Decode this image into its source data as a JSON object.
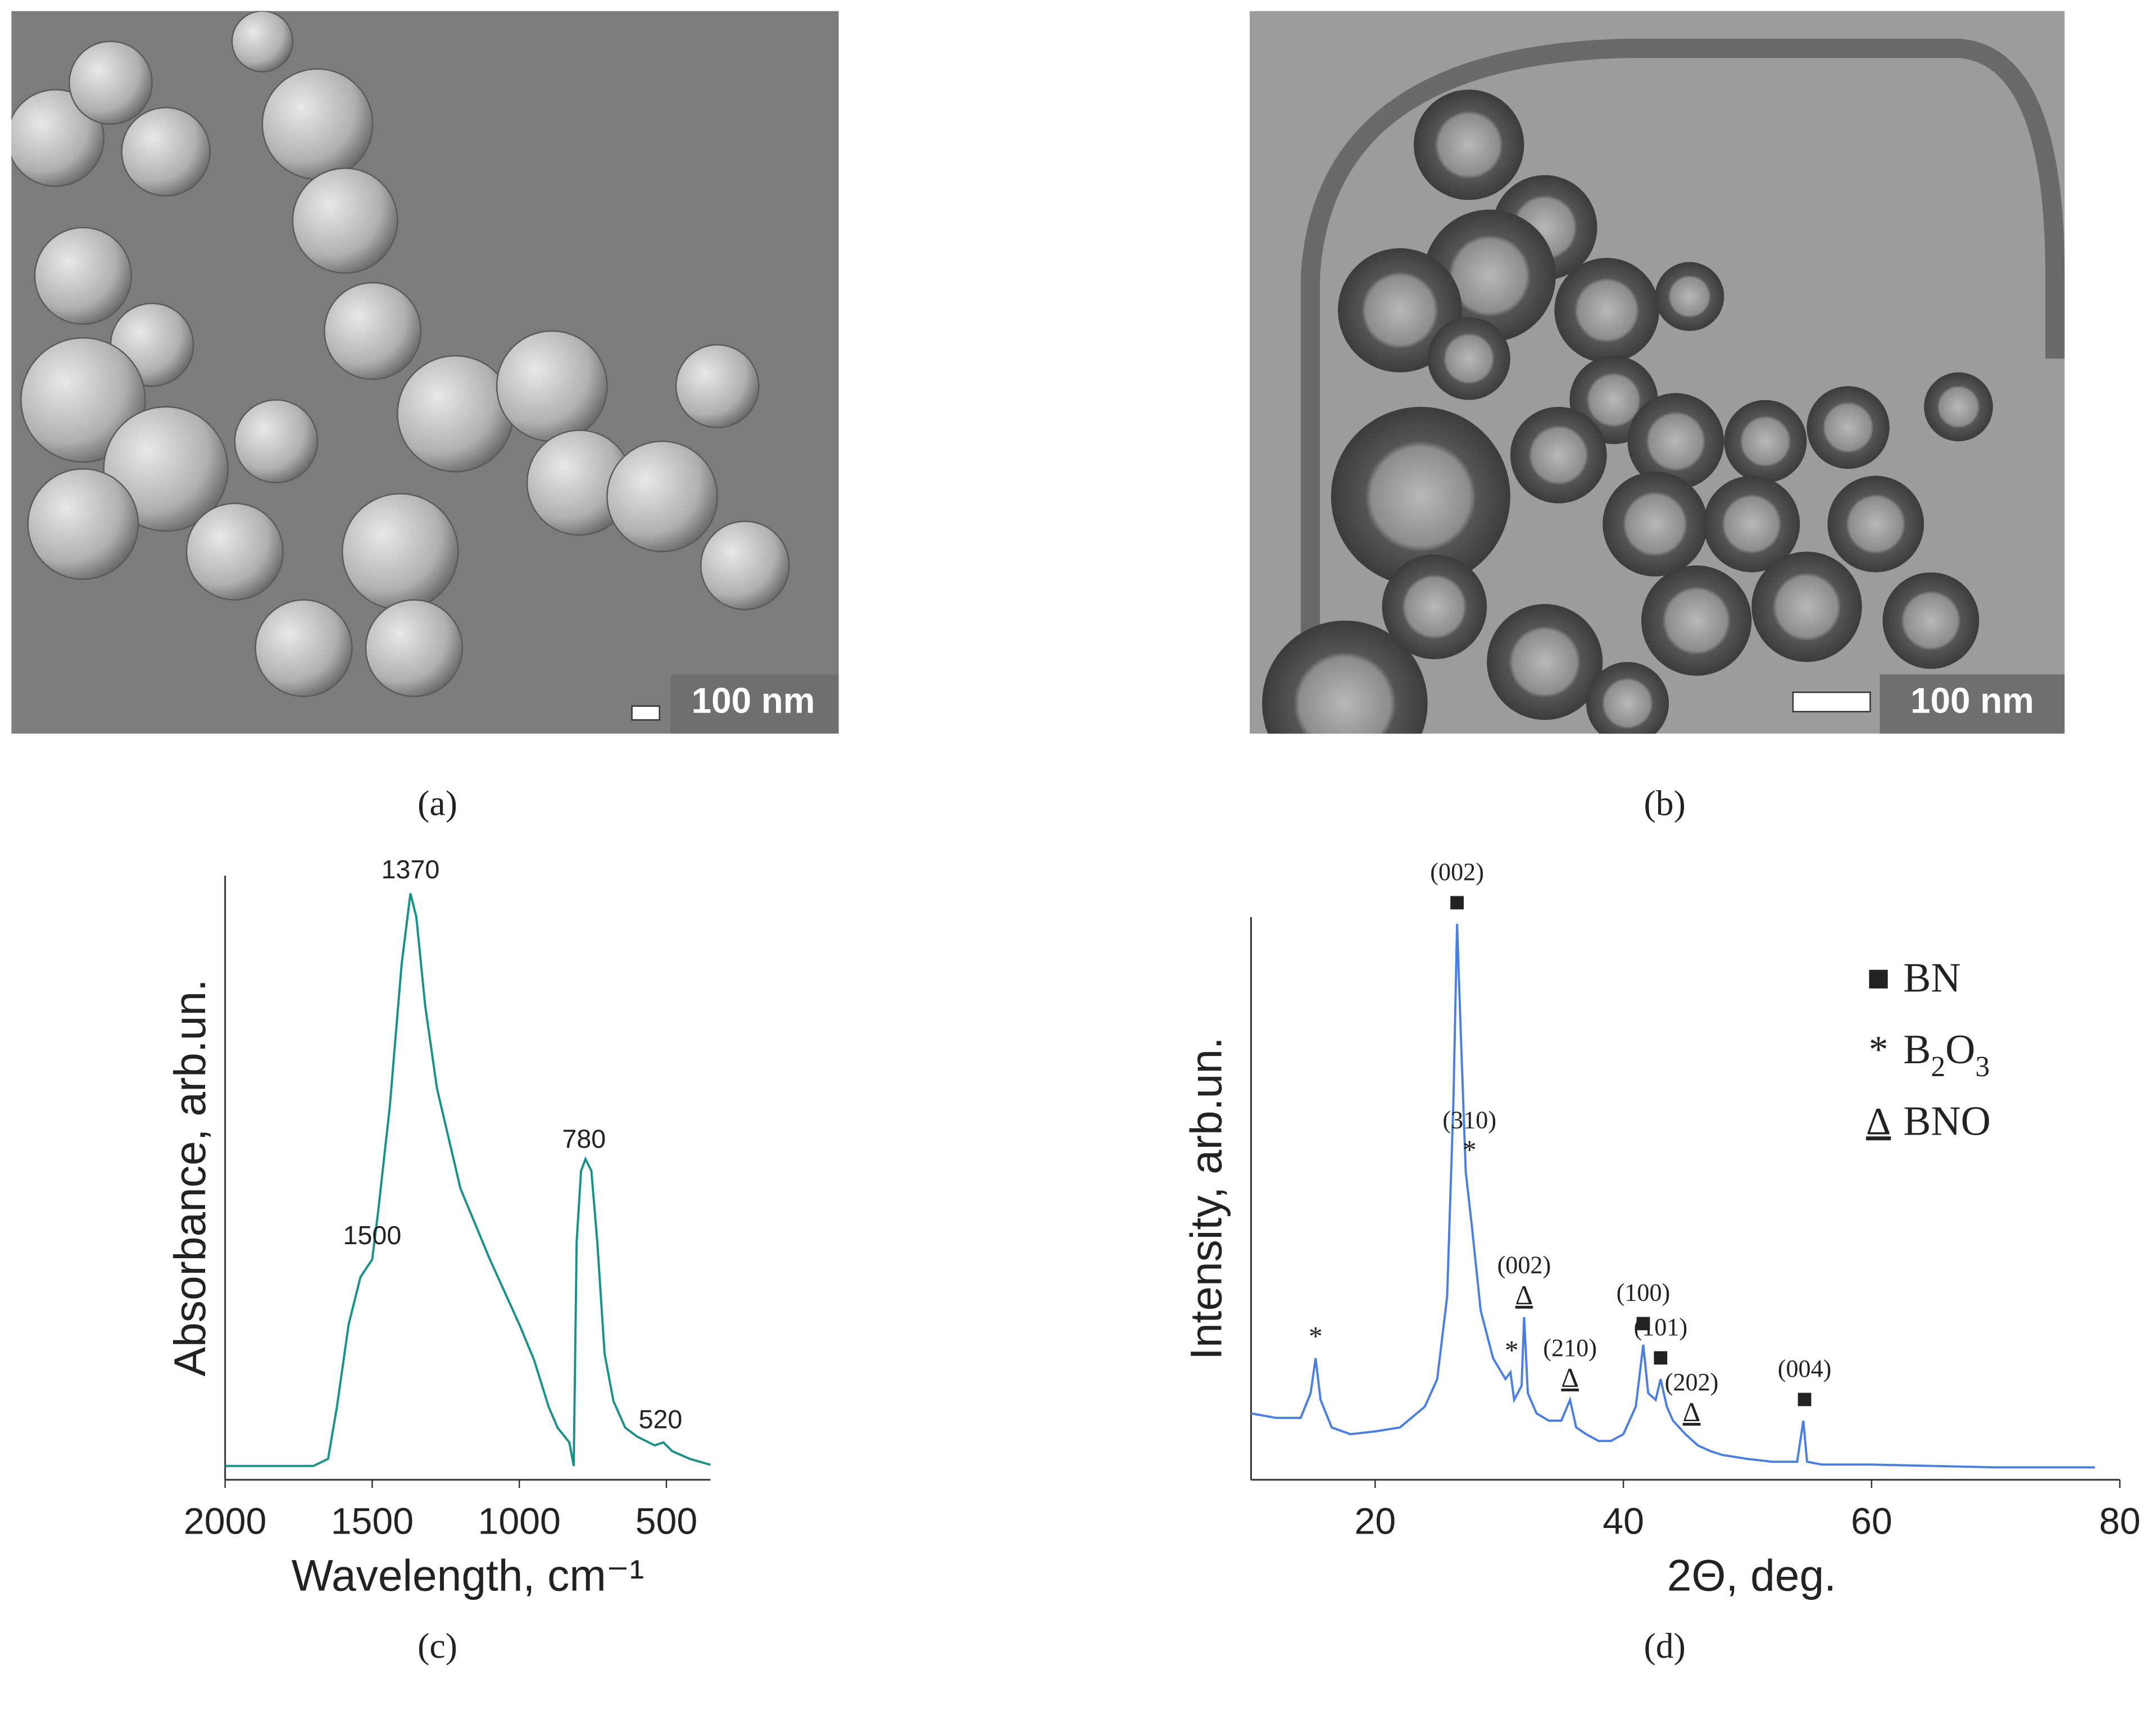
{
  "figure": {
    "panels": [
      {
        "label": "(a)",
        "scale_bar": "100 nm"
      },
      {
        "label": "(b)",
        "scale_bar": "100 nm"
      }
    ]
  },
  "chart_data": [
    {
      "type": "line",
      "label": "(c)",
      "x_label": "Wavelength, cm⁻¹",
      "y_label": "Absorbance, arb.un.",
      "xlim": [
        2000,
        350
      ],
      "xticks": [
        2000,
        1500,
        1000,
        500
      ],
      "ylim": [
        0,
        1
      ],
      "x": [
        2000,
        1700,
        1650,
        1620,
        1580,
        1540,
        1500,
        1480,
        1440,
        1400,
        1370,
        1350,
        1320,
        1280,
        1200,
        1100,
        1000,
        950,
        900,
        870,
        830,
        815,
        805,
        790,
        775,
        755,
        735,
        710,
        680,
        640,
        600,
        540,
        510,
        480,
        420,
        350
      ],
      "series": [
        {
          "color": "#1a9089",
          "values": [
            0,
            0,
            0.012,
            0.1,
            0.24,
            0.32,
            0.35,
            0.43,
            0.61,
            0.85,
            0.97,
            0.93,
            0.78,
            0.64,
            0.47,
            0.35,
            0.24,
            0.18,
            0.1,
            0.065,
            0.04,
            0,
            0.38,
            0.5,
            0.52,
            0.5,
            0.38,
            0.19,
            0.11,
            0.065,
            0.05,
            0.035,
            0.04,
            0.025,
            0.012,
            0.002
          ]
        }
      ],
      "peak_labels": [
        1500,
        1370,
        780,
        520
      ]
    },
    {
      "type": "line",
      "label": "(d)",
      "x_label": "2Θ, deg.",
      "y_label": "Intensity, arb.un.",
      "xlim": [
        10,
        80
      ],
      "xticks": [
        20,
        40,
        60,
        80
      ],
      "ylim": [
        0,
        1
      ],
      "x": [
        10,
        12,
        14,
        14.8,
        15.2,
        15.6,
        16.5,
        18,
        20,
        22,
        24,
        25,
        25.8,
        26.3,
        26.6,
        26.9,
        27.3,
        27.8,
        28.5,
        29.5,
        30.5,
        30.9,
        31.2,
        31.8,
        32.0,
        32.3,
        33,
        34,
        35,
        35.7,
        36.2,
        37,
        38,
        39,
        40,
        41,
        41.6,
        42,
        42.6,
        43,
        43.5,
        44,
        45,
        46,
        47,
        48,
        50,
        52,
        54,
        54.5,
        54.8,
        56,
        60,
        64,
        70,
        78
      ],
      "series": [
        {
          "color": "#4a7fe0",
          "values": [
            0.118,
            0.11,
            0.11,
            0.154,
            0.216,
            0.142,
            0.093,
            0.081,
            0.086,
            0.093,
            0.13,
            0.179,
            0.326,
            0.669,
            0.988,
            0.792,
            0.547,
            0.449,
            0.301,
            0.216,
            0.179,
            0.191,
            0.142,
            0.167,
            0.289,
            0.154,
            0.118,
            0.105,
            0.105,
            0.142,
            0.093,
            0.081,
            0.069,
            0.069,
            0.081,
            0.13,
            0.24,
            0.154,
            0.142,
            0.179,
            0.13,
            0.105,
            0.081,
            0.061,
            0.051,
            0.044,
            0.037,
            0.032,
            0.032,
            0.105,
            0.032,
            0.027,
            0.027,
            0.025,
            0.022,
            0.022
          ]
        }
      ],
      "legend": [
        {
          "symbol": "■",
          "name": "BN"
        },
        {
          "symbol": "*",
          "name": "B2O3"
        },
        {
          "symbol": "Δ",
          "name": "BNO"
        }
      ],
      "annotations": [
        {
          "x": 15.2,
          "symbol": "*"
        },
        {
          "x": 26.6,
          "label": "(002)",
          "symbol": "■"
        },
        {
          "x": 27.6,
          "label": "(310)",
          "symbol": "*"
        },
        {
          "x": 31.0,
          "symbol": "*"
        },
        {
          "x": 32.0,
          "label": "(002)",
          "symbol": "Δ"
        },
        {
          "x": 35.7,
          "label": "(210)",
          "symbol": "Δ"
        },
        {
          "x": 41.6,
          "label": "(100)",
          "symbol": "■"
        },
        {
          "x": 43.0,
          "label": "(101)",
          "symbol": "■"
        },
        {
          "x": 45.5,
          "label": "(202)",
          "symbol": "Δ"
        },
        {
          "x": 54.6,
          "label": "(004)",
          "symbol": "■"
        }
      ]
    }
  ]
}
